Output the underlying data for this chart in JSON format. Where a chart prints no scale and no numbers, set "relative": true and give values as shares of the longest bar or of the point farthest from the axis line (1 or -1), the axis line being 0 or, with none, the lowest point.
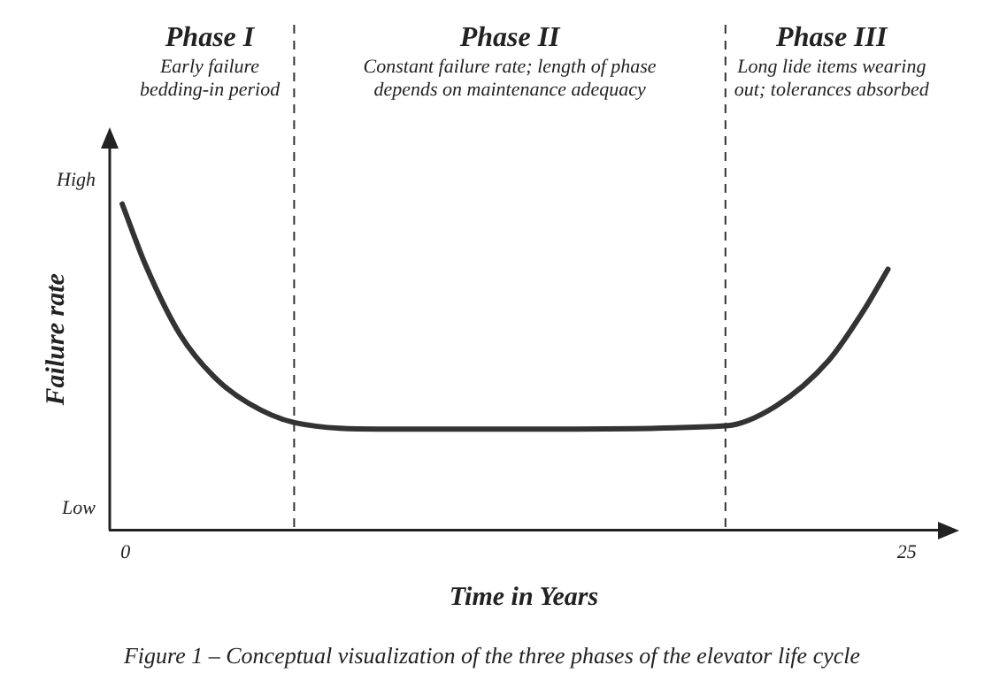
{
  "chart_data": {
    "type": "line",
    "xlabel": "Time in Years",
    "ylabel": "Failure rate",
    "relative": true,
    "x": [
      -0.1,
      0.66,
      1.75,
      2.84,
      3.93,
      5.41,
      8.3,
      13.8,
      19.2,
      20.8,
      22.5,
      23.6,
      24.4
    ],
    "series": [
      {
        "color": "#333333",
        "values": [
          1,
          0.81,
          0.6,
          0.47,
          0.39,
          0.33,
          0.31,
          0.31,
          0.32,
          0.38,
          0.52,
          0.67,
          0.8
        ]
      }
    ],
    "xlim": [
      -0.5,
      26
    ],
    "xticks": [
      0,
      25
    ],
    "ref_lines": [
      {
        "axis": "x",
        "value": 5.4,
        "line_style": "dashed"
      },
      {
        "axis": "x",
        "value": 19.2,
        "line_style": "dashed"
      }
    ],
    "annotations": [
      "Phase I\nEarly failure\nbedding-in period",
      "Phase II\nConstant failure rate; length of phase\ndepends on maintenance adequacy",
      "Phase III\nLong lide items wearing\nout; tolerances absorbed",
      "High",
      "Low",
      "Figure 1 – Conceptual visualization of the three phases of the elevator life cycle"
    ],
    "grid": false,
    "legend": false,
    "marker": "none",
    "line_style": "solid"
  }
}
